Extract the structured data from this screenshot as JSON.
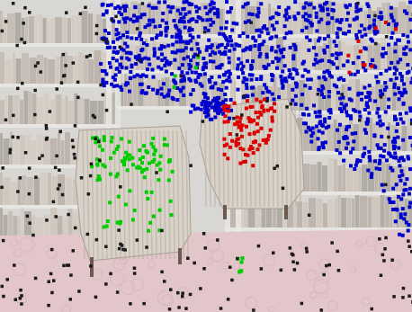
{
  "image": {
    "description_labels": {
      "bookshelves": "bookshelf",
      "left_chair": "armchair",
      "right_chair": "armchair",
      "floor": "carpet"
    },
    "colors": {
      "wall_shelf_tint": "#cdcac6",
      "book_spines": [
        "#8a7a6a",
        "#a38e7a",
        "#6f6357",
        "#b7a58f",
        "#c3b2a0"
      ],
      "shelf_board": "#e3e0dc",
      "carpet": "#d9b3b7",
      "carpet_pattern": "#c8a0a6",
      "chair_fabric": "#d8d2c8",
      "chair_stripe": "#b8aea2",
      "chair_leg": "#6b5a50",
      "point_blue": "#0000cc",
      "point_red": "#dd0000",
      "point_green": "#00cc00",
      "point_black": "#1a1a1a"
    },
    "point_clusters": [
      {
        "name": "shelf-cluster",
        "color_key": "point_blue",
        "count": 1200
      },
      {
        "name": "right-chair-cluster",
        "color_key": "point_red",
        "count": 95
      },
      {
        "name": "left-chair-cluster",
        "color_key": "point_green",
        "count": 110
      },
      {
        "name": "background-noise",
        "color_key": "point_black",
        "count": 230
      }
    ]
  }
}
